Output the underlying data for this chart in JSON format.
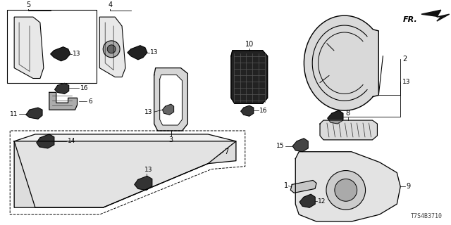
{
  "doc_number": "T7S4B3710",
  "fr_label": "FR.",
  "background_color": "#ffffff",
  "line_color": "#000000",
  "text_color": "#000000",
  "figsize": [
    6.4,
    3.2
  ],
  "dpi": 100
}
